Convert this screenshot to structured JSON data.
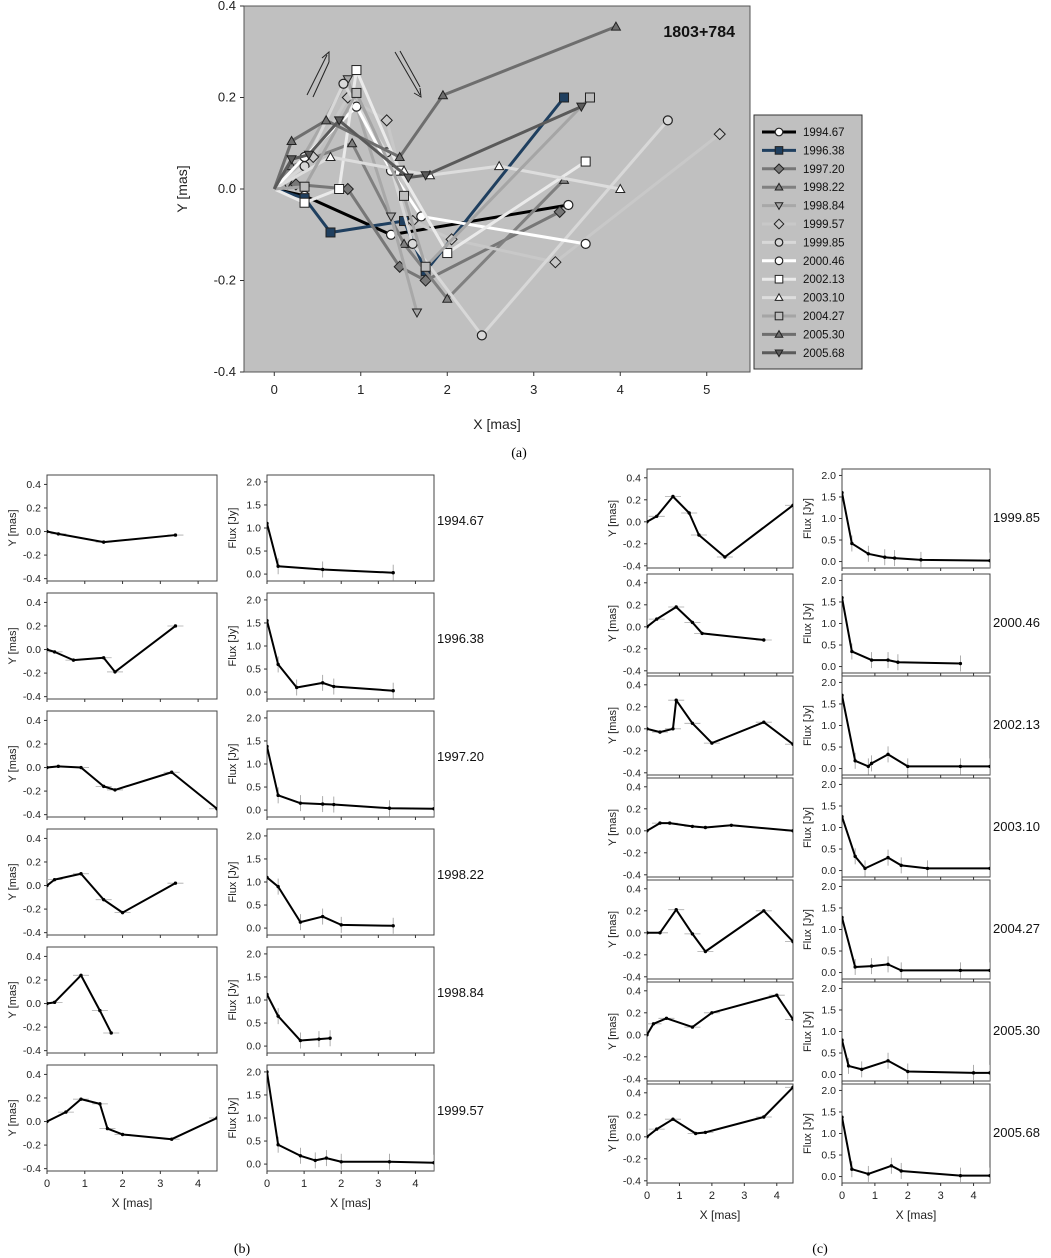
{
  "figure": {
    "panel_a": {
      "label": "1803+784",
      "xlabel": "X [mas]",
      "ylabel": "Y [mas]",
      "xlim": [
        -0.35,
        5.5
      ],
      "ylim": [
        -0.4,
        0.4
      ],
      "xticks": [
        "0",
        "1",
        "2",
        "3",
        "4",
        "5"
      ],
      "yticks": [
        "0.4",
        "0.2",
        "0.0",
        "-0.2",
        "-0.4"
      ],
      "caption": "(a)"
    },
    "panel_b_caption": "(b)",
    "panel_c_caption": "(c)",
    "sub_xlabel": "X [mas]",
    "sub_ylabel": "Y [mas]",
    "sub_flabel": "Flux [Jy]",
    "sub_yticks": [
      "0.4",
      "0.2",
      "0.0",
      "-0.2",
      "-0.4"
    ],
    "sub_fticks": [
      "2.0",
      "1.5",
      "1.0",
      "0.5",
      "0.0"
    ],
    "sub_xticks": [
      "0",
      "1",
      "2",
      "3",
      "4"
    ]
  },
  "chart_data": [
    {
      "type": "line",
      "title": "1803+784",
      "xlabel": "X [mas]",
      "ylabel": "Y [mas]",
      "xlim": [
        -0.35,
        5.5
      ],
      "ylim": [
        -0.4,
        0.4
      ],
      "legend": "right",
      "series": [
        {
          "name": "1994.67",
          "color": "#000000",
          "marker": "circle-open",
          "x": [
            0,
            0.35,
            1.35,
            3.4
          ],
          "y": [
            0,
            -0.015,
            -0.1,
            -0.035
          ]
        },
        {
          "name": "1996.38",
          "color": "#1f3f5f",
          "marker": "square-filled",
          "x": [
            0,
            0.35,
            0.65,
            1.5,
            1.75,
            3.35
          ],
          "y": [
            0,
            -0.02,
            -0.095,
            -0.07,
            -0.18,
            0.2
          ]
        },
        {
          "name": "1997.20",
          "color": "#777777",
          "marker": "diamond",
          "x": [
            0,
            0.25,
            0.85,
            1.45,
            1.75,
            3.3
          ],
          "y": [
            0,
            0.01,
            0.0,
            -0.17,
            -0.2,
            -0.05
          ]
        },
        {
          "name": "1998.22",
          "color": "#808080",
          "marker": "triangle-filled",
          "x": [
            0,
            0.2,
            0.9,
            1.5,
            2.0,
            3.35
          ],
          "y": [
            0,
            0.05,
            0.1,
            -0.12,
            -0.24,
            0.02
          ]
        },
        {
          "name": "1998.84",
          "color": "#a8a8a8",
          "marker": "triangle-down-filled",
          "x": [
            0,
            0.15,
            0.85,
            1.35,
            1.65
          ],
          "y": [
            0,
            0.01,
            0.24,
            -0.06,
            -0.27
          ]
        },
        {
          "name": "1999.57",
          "color": "#c8c8c8",
          "marker": "diamond-filled",
          "x": [
            0,
            0.45,
            0.85,
            1.3,
            1.6,
            2.05,
            3.25,
            5.15
          ],
          "y": [
            0,
            0.07,
            0.2,
            0.15,
            -0.07,
            -0.11,
            -0.16,
            0.12
          ]
        },
        {
          "name": "1999.85",
          "color": "#d8d8d8",
          "marker": "circle-filled",
          "x": [
            0,
            0.35,
            0.8,
            1.3,
            1.6,
            2.4,
            4.55
          ],
          "y": [
            0,
            0.05,
            0.23,
            0.08,
            -0.12,
            -0.32,
            0.15
          ]
        },
        {
          "name": "2000.46",
          "color": "#ffffff",
          "marker": "circle-open",
          "x": [
            0,
            0.35,
            0.95,
            1.35,
            1.7,
            3.6
          ],
          "y": [
            0,
            0.07,
            0.18,
            0.04,
            -0.06,
            -0.12
          ]
        },
        {
          "name": "2002.13",
          "color": "#eaeaea",
          "marker": "square-open",
          "x": [
            0,
            0.35,
            0.75,
            0.95,
            1.45,
            2.0,
            3.6
          ],
          "y": [
            0,
            -0.03,
            0.0,
            0.26,
            0.04,
            -0.14,
            0.06
          ]
        },
        {
          "name": "2003.10",
          "color": "#dddddd",
          "marker": "triangle-open",
          "x": [
            0,
            0.65,
            1.5,
            1.8,
            2.6,
            4.0
          ],
          "y": [
            0,
            0.07,
            0.04,
            0.03,
            0.05,
            0.0
          ]
        },
        {
          "name": "2004.27",
          "color": "#a5a5a5",
          "marker": "square-gray",
          "x": [
            0,
            0.35,
            0.95,
            1.5,
            1.75,
            3.65
          ],
          "y": [
            0,
            0.005,
            0.21,
            -0.015,
            -0.17,
            0.2
          ]
        },
        {
          "name": "2005.30",
          "color": "#6e6e6e",
          "marker": "triangle-filled",
          "x": [
            0,
            0.2,
            0.6,
            1.45,
            1.95,
            3.95
          ],
          "y": [
            0,
            0.105,
            0.15,
            0.07,
            0.205,
            0.355
          ]
        },
        {
          "name": "2005.68",
          "color": "#5a5a5a",
          "marker": "triangle-down-filled",
          "x": [
            0,
            0.2,
            0.4,
            0.75,
            1.55,
            1.75,
            3.55
          ],
          "y": [
            0,
            0.065,
            0.075,
            0.15,
            0.025,
            0.03,
            0.18
          ]
        }
      ]
    },
    {
      "type": "line",
      "epoch": "1994.67",
      "position": {
        "x": [
          0,
          0.3,
          1.5,
          3.4
        ],
        "y": [
          0,
          -0.02,
          -0.09,
          -0.03
        ]
      },
      "flux": {
        "x": [
          0,
          0.3,
          1.5,
          3.4
        ],
        "y": [
          1.1,
          0.17,
          0.1,
          0.03
        ]
      }
    },
    {
      "type": "line",
      "epoch": "1996.38",
      "position": {
        "x": [
          0,
          0.2,
          0.7,
          1.5,
          1.8,
          3.4
        ],
        "y": [
          0,
          -0.02,
          -0.09,
          -0.07,
          -0.19,
          0.2
        ]
      },
      "flux": {
        "x": [
          0,
          0.3,
          0.8,
          1.5,
          1.8,
          3.4
        ],
        "y": [
          1.55,
          0.6,
          0.1,
          0.2,
          0.12,
          0.03
        ]
      }
    },
    {
      "type": "line",
      "epoch": "1997.20",
      "position": {
        "x": [
          0,
          0.3,
          0.9,
          1.5,
          1.8,
          3.3,
          4.5
        ],
        "y": [
          0,
          0.01,
          0.0,
          -0.16,
          -0.19,
          -0.04,
          -0.35
        ]
      },
      "flux": {
        "x": [
          0,
          0.3,
          0.9,
          1.5,
          1.8,
          3.3,
          4.5
        ],
        "y": [
          1.38,
          0.32,
          0.15,
          0.13,
          0.12,
          0.04,
          0.03
        ]
      }
    },
    {
      "type": "line",
      "epoch": "1998.22",
      "position": {
        "x": [
          0,
          0.2,
          0.9,
          1.5,
          2.0,
          3.4
        ],
        "y": [
          0,
          0.05,
          0.1,
          -0.12,
          -0.23,
          0.02
        ]
      },
      "flux": {
        "x": [
          0,
          0.3,
          0.9,
          1.5,
          2.0,
          3.4
        ],
        "y": [
          1.1,
          0.9,
          0.13,
          0.25,
          0.07,
          0.05
        ]
      }
    },
    {
      "type": "line",
      "epoch": "1998.84",
      "position": {
        "x": [
          0,
          0.2,
          0.9,
          1.4,
          1.7
        ],
        "y": [
          0,
          0.01,
          0.24,
          -0.06,
          -0.25
        ]
      },
      "flux": {
        "x": [
          0,
          0.3,
          0.9,
          1.4,
          1.7
        ],
        "y": [
          1.12,
          0.65,
          0.12,
          0.15,
          0.17
        ]
      }
    },
    {
      "type": "line",
      "epoch": "1999.57",
      "position": {
        "x": [
          0,
          0.5,
          0.9,
          1.4,
          1.6,
          2.0,
          3.3,
          4.5
        ],
        "y": [
          0,
          0.08,
          0.19,
          0.15,
          -0.06,
          -0.11,
          -0.15,
          0.03
        ]
      },
      "flux": {
        "x": [
          0,
          0.3,
          0.9,
          1.3,
          1.6,
          2.0,
          3.3,
          4.5
        ],
        "y": [
          2.0,
          0.42,
          0.18,
          0.08,
          0.13,
          0.05,
          0.05,
          0.03
        ]
      }
    },
    {
      "type": "line",
      "epoch": "1999.85",
      "position": {
        "x": [
          0,
          0.3,
          0.8,
          1.3,
          1.6,
          2.4,
          4.5
        ],
        "y": [
          0,
          0.05,
          0.23,
          0.08,
          -0.12,
          -0.32,
          0.15
        ]
      },
      "flux": {
        "x": [
          0,
          0.3,
          0.8,
          1.3,
          1.6,
          2.4,
          4.5
        ],
        "y": [
          1.6,
          0.42,
          0.18,
          0.1,
          0.08,
          0.04,
          0.02
        ]
      }
    },
    {
      "type": "line",
      "epoch": "2000.46",
      "position": {
        "x": [
          0,
          0.3,
          0.9,
          1.4,
          1.7,
          3.6
        ],
        "y": [
          0,
          0.07,
          0.18,
          0.04,
          -0.06,
          -0.12
        ]
      },
      "flux": {
        "x": [
          0,
          0.3,
          0.9,
          1.4,
          1.7,
          3.6
        ],
        "y": [
          1.6,
          0.35,
          0.15,
          0.15,
          0.1,
          0.07
        ]
      }
    },
    {
      "type": "line",
      "epoch": "2002.13",
      "position": {
        "x": [
          0,
          0.4,
          0.8,
          0.9,
          1.4,
          2.0,
          3.6,
          4.5
        ],
        "y": [
          0,
          -0.03,
          0.0,
          0.26,
          0.05,
          -0.13,
          0.06,
          -0.14
        ]
      },
      "flux": {
        "x": [
          0,
          0.4,
          0.8,
          0.9,
          1.4,
          2.0,
          3.6,
          4.5
        ],
        "y": [
          1.7,
          0.18,
          0.05,
          0.12,
          0.33,
          0.05,
          0.05,
          0.05
        ]
      }
    },
    {
      "type": "line",
      "epoch": "2003.10",
      "position": {
        "x": [
          0,
          0.4,
          0.7,
          1.4,
          1.8,
          2.6,
          4.5
        ],
        "y": [
          0,
          0.07,
          0.07,
          0.04,
          0.03,
          0.05,
          0.0
        ]
      },
      "flux": {
        "x": [
          0,
          0.4,
          0.7,
          1.4,
          1.8,
          2.6,
          4.5
        ],
        "y": [
          1.25,
          0.33,
          0.05,
          0.3,
          0.12,
          0.05,
          0.05
        ]
      }
    },
    {
      "type": "line",
      "epoch": "2004.27",
      "position": {
        "x": [
          0,
          0.4,
          0.9,
          1.4,
          1.8,
          3.6,
          4.5
        ],
        "y": [
          0,
          0.0,
          0.21,
          -0.01,
          -0.17,
          0.2,
          -0.08
        ]
      },
      "flux": {
        "x": [
          0,
          0.4,
          0.9,
          1.4,
          1.8,
          3.6,
          4.5
        ],
        "y": [
          1.28,
          0.13,
          0.15,
          0.19,
          0.05,
          0.05,
          0.05
        ]
      }
    },
    {
      "type": "line",
      "epoch": "2005.30",
      "position": {
        "x": [
          0,
          0.2,
          0.6,
          1.4,
          2.0,
          4.0,
          4.5
        ],
        "y": [
          0,
          0.1,
          0.15,
          0.07,
          0.2,
          0.36,
          0.14
        ]
      },
      "flux": {
        "x": [
          0,
          0.2,
          0.6,
          1.4,
          2.0,
          4.0,
          4.5
        ],
        "y": [
          0.8,
          0.2,
          0.12,
          0.32,
          0.07,
          0.04,
          0.04
        ]
      }
    },
    {
      "type": "line",
      "epoch": "2005.68",
      "position": {
        "x": [
          0,
          0.3,
          0.8,
          1.5,
          1.8,
          3.6,
          4.5
        ],
        "y": [
          0,
          0.07,
          0.16,
          0.03,
          0.04,
          0.18,
          0.45
        ]
      },
      "flux": {
        "x": [
          0,
          0.3,
          0.8,
          1.5,
          1.8,
          3.6,
          4.5
        ],
        "y": [
          1.38,
          0.17,
          0.06,
          0.25,
          0.13,
          0.02,
          0.02
        ]
      }
    }
  ]
}
